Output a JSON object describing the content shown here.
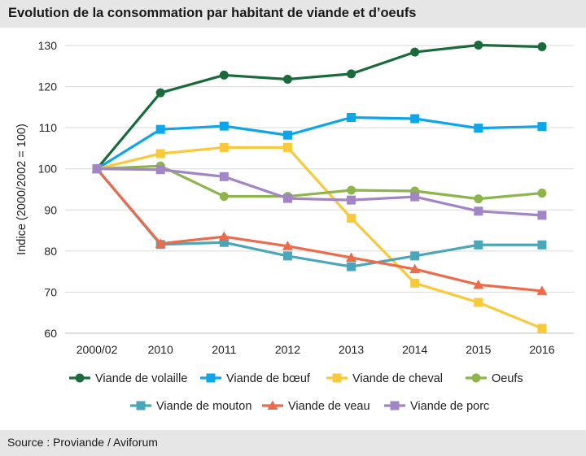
{
  "header": {
    "title": "Evolution de la consommation par habitant de viande et d’oeufs"
  },
  "footer": {
    "source": "Source : Proviande / Aviforum"
  },
  "chart_data": {
    "type": "line",
    "title": "Evolution de la consommation par habitant de viande et d’oeufs",
    "xlabel": "",
    "ylabel": "Indice (2000/2002 = 100)",
    "categories": [
      "2000/02",
      "2010",
      "2011",
      "2012",
      "2013",
      "2014",
      "2015",
      "2016"
    ],
    "ylim": [
      60,
      130
    ],
    "yticks": [
      60,
      70,
      80,
      90,
      100,
      110,
      120,
      130
    ],
    "grid": true,
    "legend_position": "bottom",
    "series": [
      {
        "name": "Viande de volaille",
        "color": "#1a6b3c",
        "marker": "circle",
        "values": [
          100,
          118.5,
          122.8,
          121.8,
          123.1,
          128.4,
          130.1,
          129.7
        ]
      },
      {
        "name": "Viande de bœuf",
        "color": "#0ea5e9",
        "marker": "square",
        "values": [
          100,
          109.6,
          110.4,
          108.2,
          112.5,
          112.2,
          109.9,
          110.3
        ]
      },
      {
        "name": "Viande de cheval",
        "color": "#f9c93c",
        "marker": "square",
        "values": [
          100,
          103.7,
          105.2,
          105.2,
          88.0,
          72.2,
          67.5,
          61.2
        ]
      },
      {
        "name": "Oeufs",
        "color": "#8db54b",
        "marker": "circle",
        "values": [
          100,
          100.7,
          93.3,
          93.3,
          94.8,
          94.6,
          92.7,
          94.1
        ]
      },
      {
        "name": "Viande de mouton",
        "color": "#4aa6b8",
        "marker": "square",
        "values": [
          100,
          81.6,
          82.1,
          78.8,
          76.2,
          78.8,
          81.5,
          81.5
        ]
      },
      {
        "name": "Viande de veau",
        "color": "#ec6b4b",
        "marker": "triangle",
        "values": [
          100,
          81.8,
          83.5,
          81.2,
          78.4,
          75.6,
          71.8,
          70.3
        ]
      },
      {
        "name": "Viande de porc",
        "color": "#a285c4",
        "marker": "square",
        "values": [
          100,
          99.8,
          98.1,
          92.8,
          92.4,
          93.2,
          89.7,
          88.7
        ]
      }
    ]
  }
}
